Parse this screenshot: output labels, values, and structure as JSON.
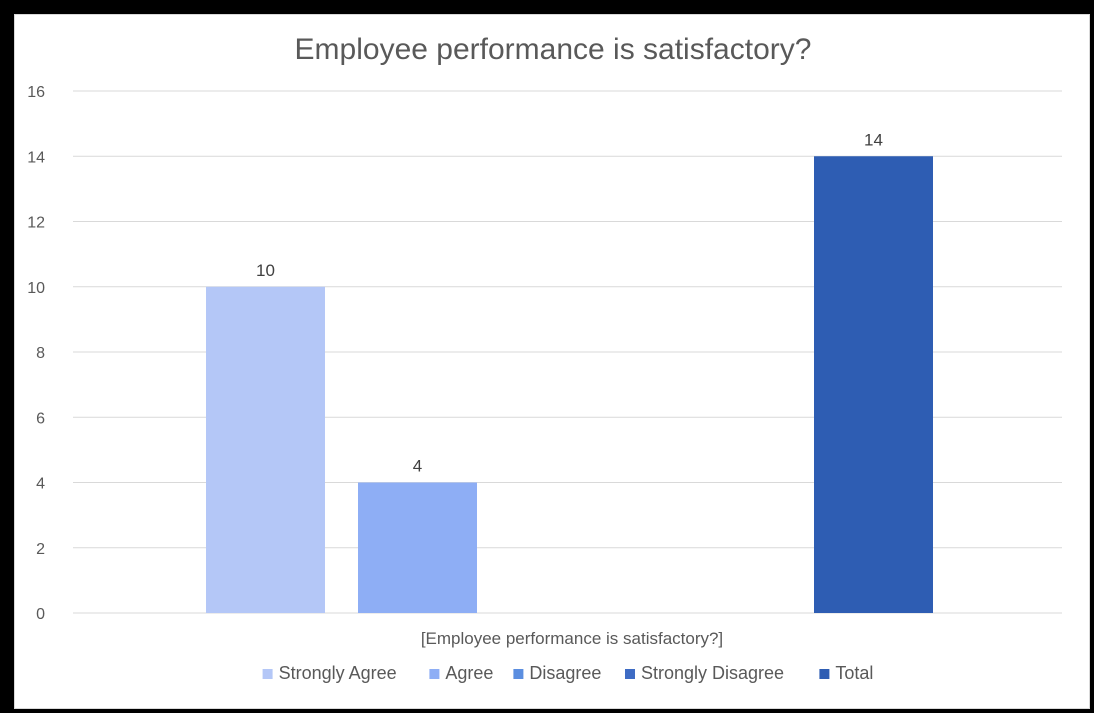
{
  "chart_data": {
    "type": "bar",
    "title": "Employee performance is satisfactory?",
    "categories": [
      "[Employee performance is satisfactory?]"
    ],
    "series": [
      {
        "name": "Strongly Agree",
        "values": [
          10
        ],
        "color": "#b4c7f7"
      },
      {
        "name": "Agree",
        "values": [
          4
        ],
        "color": "#8eaef5"
      },
      {
        "name": "Disagree",
        "values": [
          0
        ],
        "color": "#5b8ee0"
      },
      {
        "name": "Strongly Disagree",
        "values": [
          0
        ],
        "color": "#3e6cc4"
      },
      {
        "name": "Total",
        "values": [
          14
        ],
        "color": "#2e5db3"
      }
    ],
    "yticks": [
      "0",
      "2",
      "4",
      "6",
      "8",
      "10",
      "12",
      "14",
      "16"
    ],
    "ylim": [
      0,
      16
    ],
    "grid": true,
    "legend_position": "bottom",
    "data_labels": [
      "10",
      "4",
      "",
      "",
      "14"
    ]
  }
}
